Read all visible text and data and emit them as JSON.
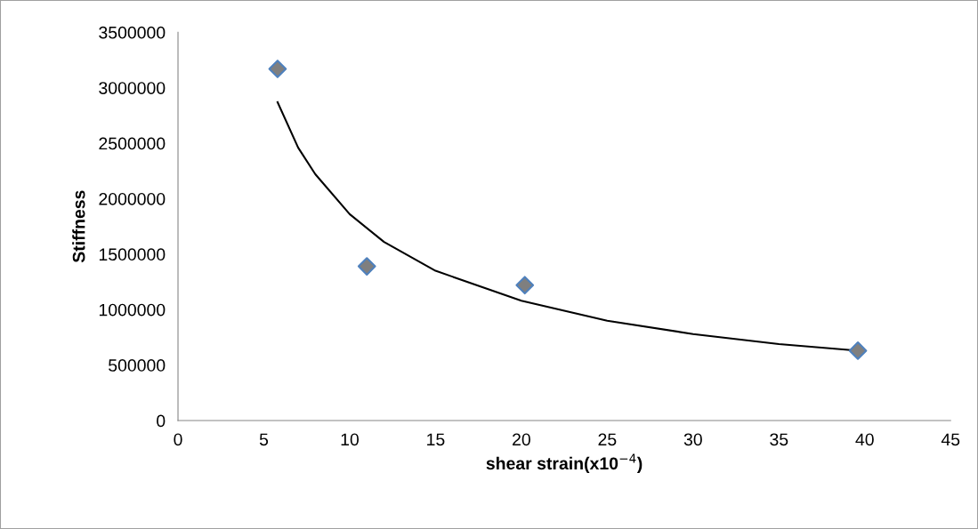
{
  "chart_data": {
    "type": "scatter",
    "xlabel": "shear strain(x10$^{−4}$)",
    "ylabel": "Stiffness",
    "xlim": [
      0,
      45
    ],
    "xticks": [
      0,
      5,
      10,
      15,
      20,
      25,
      30,
      35,
      40,
      45
    ],
    "ylim": [
      0,
      3500000
    ],
    "yticks": [
      0,
      500000,
      1000000,
      1500000,
      2000000,
      2500000,
      3000000,
      3500000
    ],
    "grid": false,
    "legend": false,
    "series": [
      {
        "marker": "diamond",
        "color": "#7f7f7f",
        "x": [
          5.8,
          11.0,
          20.2,
          39.6
        ],
        "values": [
          3170000,
          1390000,
          1220000,
          630000
        ]
      },
      {
        "type": "line",
        "marker": "none",
        "line_style": "solid",
        "color": "#000000",
        "x": [
          5.8,
          7,
          8,
          10,
          12,
          15,
          20,
          25,
          30,
          35,
          39.6
        ],
        "values": [
          2870000,
          2460000,
          2220000,
          1860000,
          1610000,
          1350000,
          1080000,
          900000,
          780000,
          690000,
          630000
        ]
      }
    ]
  }
}
